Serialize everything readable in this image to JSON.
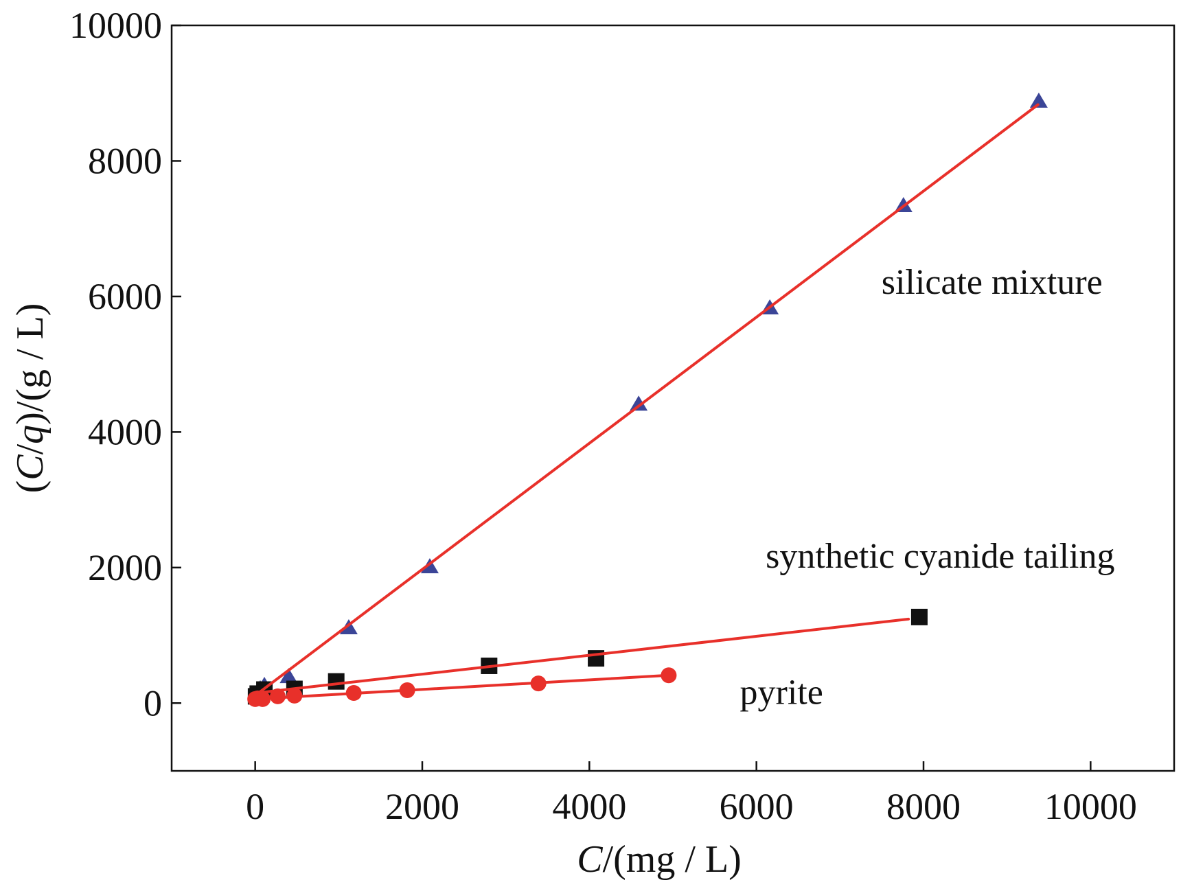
{
  "chart_data": {
    "type": "scatter",
    "title": "",
    "xlabel": {
      "italic": "C",
      "rest": "/(mg / L)"
    },
    "ylabel": {
      "pre": "(",
      "italic1": "C",
      "mid": "/",
      "italic2": "q",
      "post": ")/(g / L)"
    },
    "xlim": [
      -1000,
      11000
    ],
    "ylim": [
      -1000,
      10000
    ],
    "xticks": [
      0,
      2000,
      4000,
      6000,
      8000,
      10000
    ],
    "yticks": [
      0,
      2000,
      4000,
      6000,
      8000,
      10000
    ],
    "xtick_labels": [
      "0",
      "2000",
      "4000",
      "6000",
      "8000",
      "10000"
    ],
    "ytick_labels": [
      "0",
      "2000",
      "4000",
      "6000",
      "8000",
      "10000"
    ],
    "grid": false,
    "legend": "none",
    "fit_color": "#e8302a",
    "series": [
      {
        "name": "silicate mixture",
        "marker": "triangle",
        "color": "#3b4597",
        "x": [
          60,
          110,
          400,
          1120,
          2090,
          4590,
          6160,
          7760,
          9380
        ],
        "y": [
          200,
          250,
          380,
          1100,
          2000,
          4400,
          5820,
          7330,
          8870
        ],
        "fit": {
          "x": [
            40,
            9370
          ],
          "y": [
            150,
            8830
          ]
        }
      },
      {
        "name": "synthetic cyanide tailing",
        "marker": "square",
        "color": "#111111",
        "x": [
          10,
          30,
          110,
          470,
          970,
          2800,
          4080,
          7950
        ],
        "y": [
          100,
          140,
          200,
          210,
          320,
          550,
          660,
          1270
        ],
        "fit": {
          "x": [
            20,
            7820
          ],
          "y": [
            150,
            1240
          ]
        }
      },
      {
        "name": "pyrite",
        "marker": "circle",
        "color": "#e8302a",
        "x": [
          0,
          30,
          90,
          270,
          470,
          1180,
          1820,
          3390,
          4950
        ],
        "y": [
          60,
          70,
          60,
          100,
          110,
          150,
          190,
          290,
          410
        ],
        "fit": {
          "x": [
            0,
            4950
          ],
          "y": [
            60,
            410
          ]
        }
      }
    ],
    "annotations": [
      {
        "text": "silicate mixture",
        "x": 8820,
        "y": 6040
      },
      {
        "text": "synthetic cyanide tailing",
        "x": 8200,
        "y": 2000
      },
      {
        "text": "pyrite",
        "x": 6300,
        "y": -10
      }
    ]
  }
}
